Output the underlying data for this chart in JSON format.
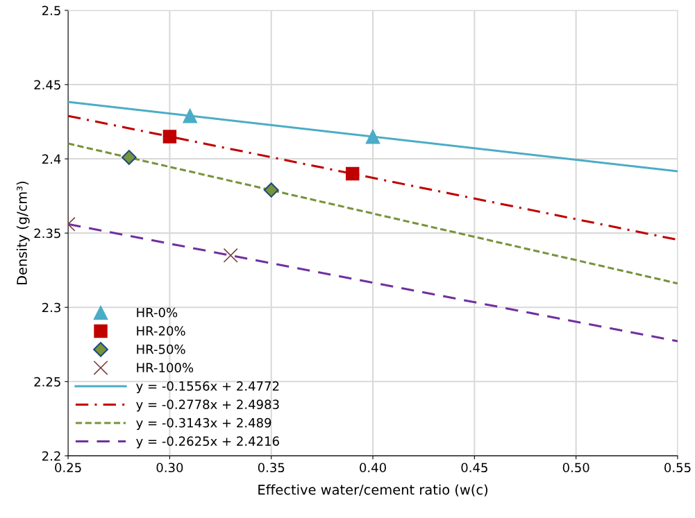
{
  "chart_data": {
    "type": "scatter",
    "xlabel": "Effective water/cement ratio (w(c)",
    "ylabel": "Density (g/cm³)",
    "xlim": [
      0.25,
      0.55
    ],
    "xticks": [
      0.25,
      {
        "value": 0.3,
        "label": "0.30"
      },
      0.35,
      {
        "value": 0.4,
        "label": "0.40"
      },
      0.45,
      {
        "value": 0.5,
        "label": "0.50"
      },
      0.55
    ],
    "ylim": [
      2.2,
      2.5
    ],
    "yticks": [
      2.2,
      2.25,
      2.3,
      2.35,
      2.4,
      2.45,
      2.5
    ],
    "grid": true,
    "legend": "bottom left",
    "series": [
      {
        "name": "HR-0%",
        "marker": "triangle",
        "color": "#4bacc6",
        "x": [
          0.31,
          0.4
        ],
        "values": [
          2.429,
          2.415
        ]
      },
      {
        "name": "HR-20%",
        "marker": "square",
        "color": "#c00000",
        "x": [
          0.3,
          0.39
        ],
        "values": [
          2.415,
          2.39
        ]
      },
      {
        "name": "HR-50%",
        "marker": "diamond",
        "color": "#77933c",
        "x": [
          0.28,
          0.35
        ],
        "values": [
          2.401,
          2.379
        ]
      },
      {
        "name": "HR-100%",
        "marker": "cross",
        "color": "#7f3f3f",
        "x": [
          0.25,
          0.33
        ],
        "values": [
          2.356,
          2.335
        ]
      },
      {
        "name": "y = -0.1556x + 2.4772",
        "type": "line",
        "line_style": "solid",
        "color": "#4bacc6",
        "x": [
          0.25,
          0.55
        ],
        "values": [
          2.4383,
          2.3916
        ]
      },
      {
        "name": "y = -0.2778x + 2.4983",
        "type": "line",
        "line_style": "dashdot",
        "color": "#c00000",
        "x": [
          0.25,
          0.55
        ],
        "values": [
          2.4289,
          2.3455
        ]
      },
      {
        "name": "y = -0.3143x + 2.489",
        "type": "line",
        "line_style": "dashed",
        "color": "#77933c",
        "x": [
          0.25,
          0.55
        ],
        "values": [
          2.4103,
          2.3161
        ]
      },
      {
        "name": "y = -0.2625x + 2.4216",
        "type": "line",
        "line_style": "long_dashed",
        "color": "#7030a0",
        "x": [
          0.25,
          0.55
        ],
        "values": [
          2.356,
          2.2772
        ]
      }
    ]
  }
}
